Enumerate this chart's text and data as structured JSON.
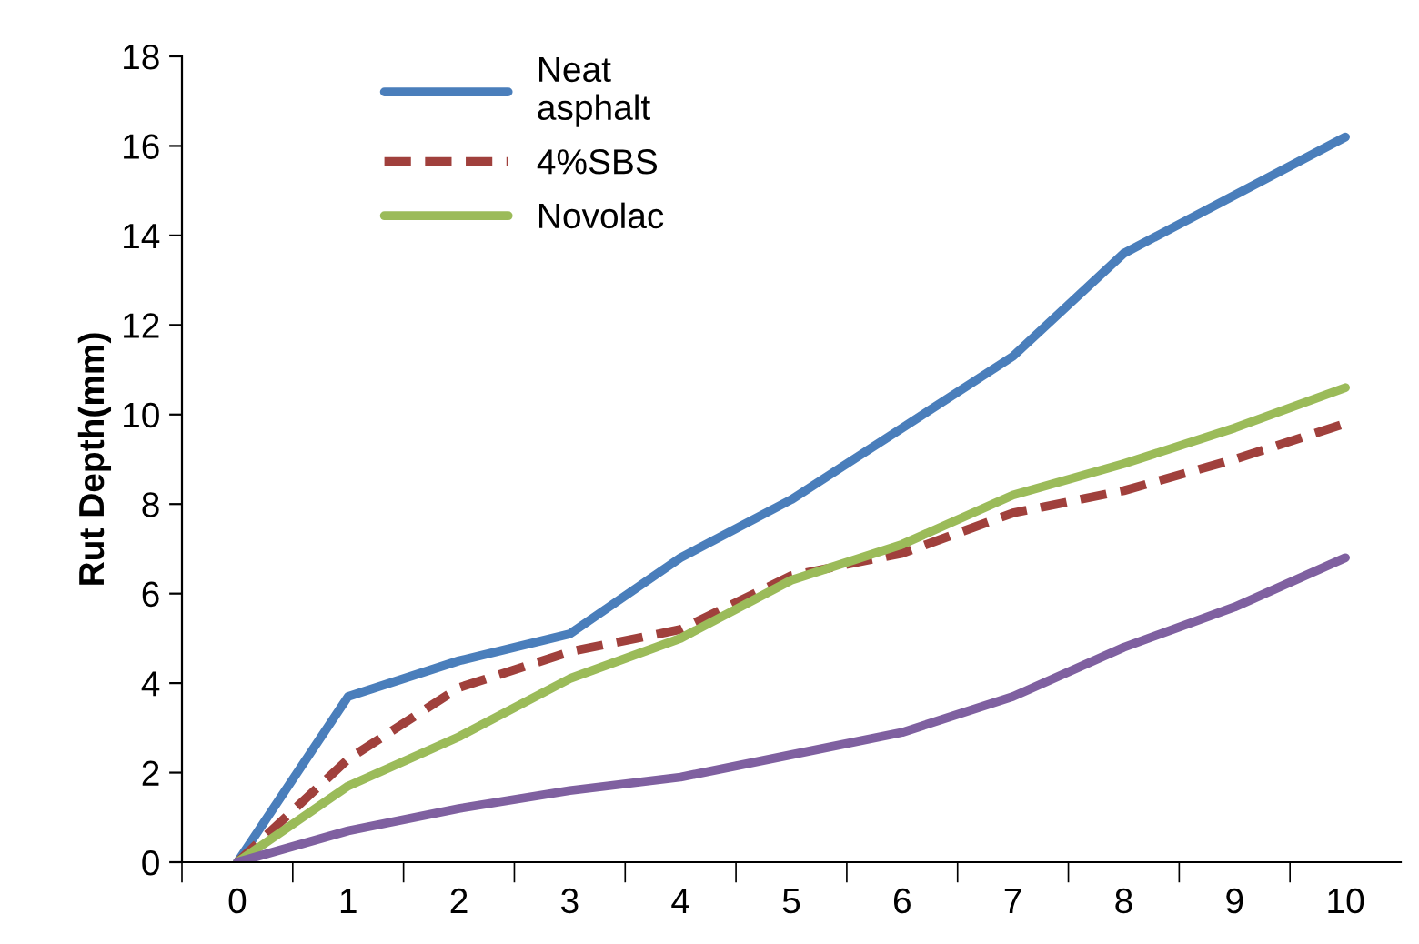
{
  "chart_data": {
    "type": "line",
    "ylabel": "Rut Depth(mm)",
    "categories": [
      "0",
      "1",
      "2",
      "3",
      "4",
      "5",
      "6",
      "7",
      "8",
      "9",
      "10"
    ],
    "series": [
      {
        "name": "Neat asphalt",
        "color": "#4a7ebb",
        "line_style": "solid",
        "values": [
          0,
          3.7,
          4.5,
          5.1,
          6.8,
          8.1,
          9.7,
          11.3,
          13.6,
          14.9,
          16.2
        ]
      },
      {
        "name": "4%SBS",
        "color": "#a0403c",
        "line_style": "dashed",
        "values": [
          0,
          2.3,
          3.9,
          4.7,
          5.2,
          6.4,
          6.9,
          7.8,
          8.3,
          9.0,
          9.8
        ]
      },
      {
        "name": "Novolac",
        "color": "#9bbb59",
        "line_style": "solid",
        "values": [
          0,
          1.7,
          2.8,
          4.1,
          5.0,
          6.3,
          7.1,
          8.2,
          8.9,
          9.7,
          10.6
        ]
      },
      {
        "color": "#7f60a0",
        "line_style": "solid",
        "values": [
          0,
          0.7,
          1.2,
          1.6,
          1.9,
          2.4,
          2.9,
          3.7,
          4.8,
          5.7,
          6.8
        ]
      }
    ],
    "ylim": [
      0,
      18
    ],
    "yticks": [
      0,
      2,
      4,
      6,
      8,
      10,
      12,
      14,
      16,
      18
    ],
    "grid": false,
    "legend": "top left",
    "marker": "none"
  }
}
